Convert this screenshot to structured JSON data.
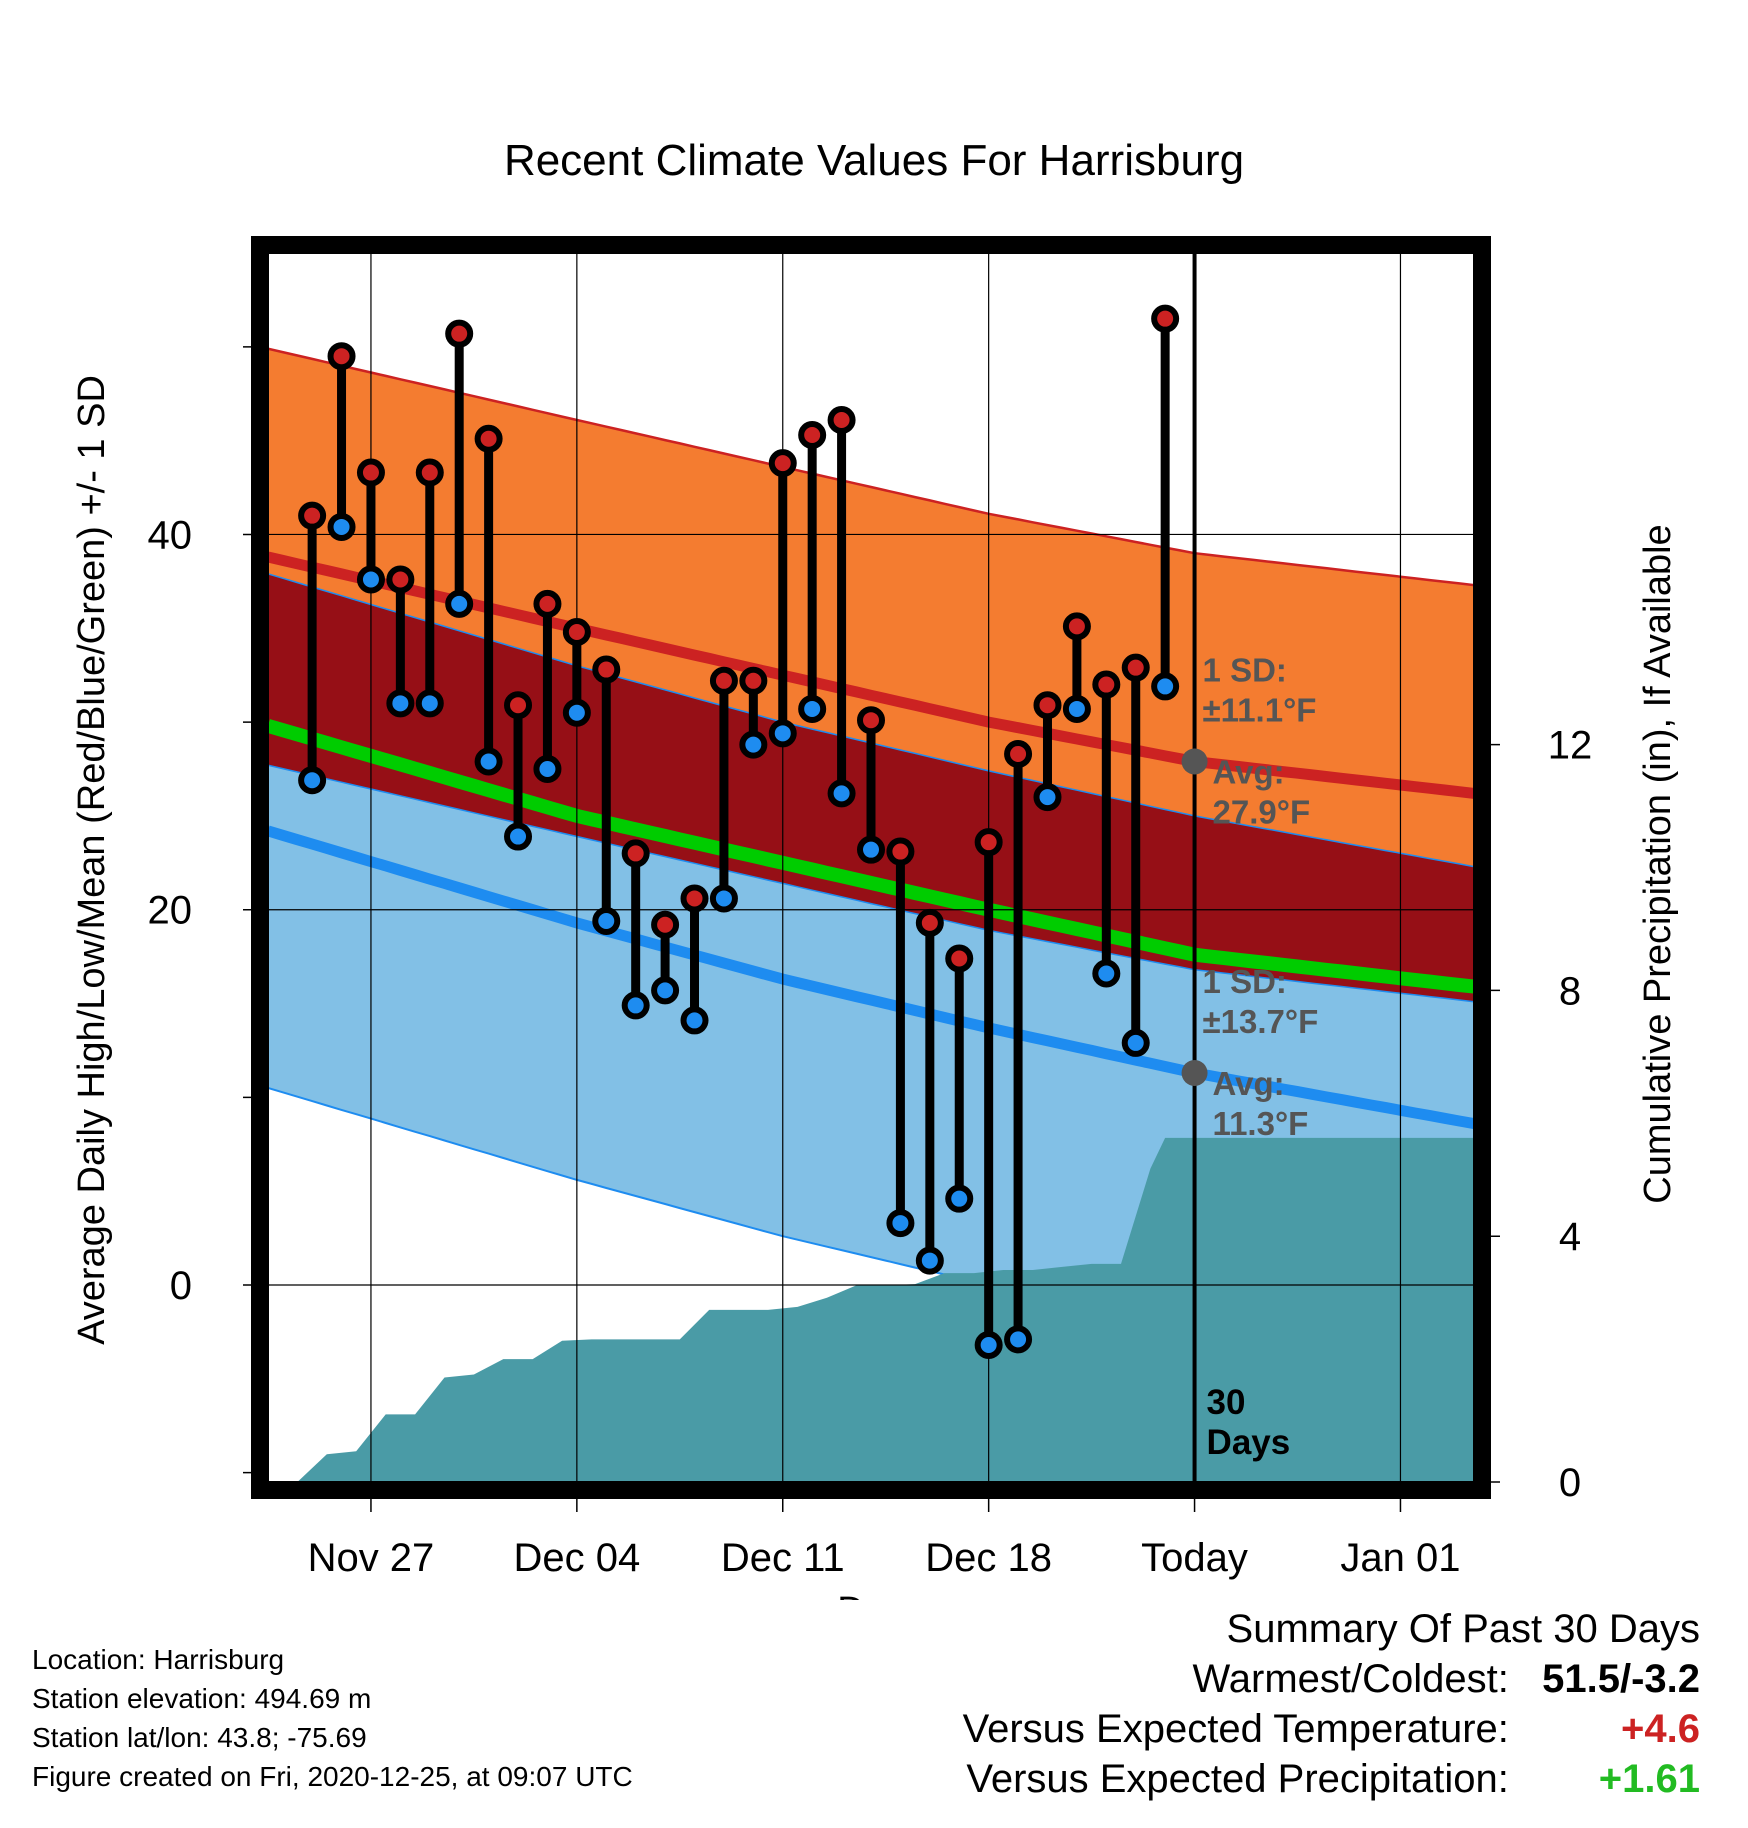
{
  "chart_data": {
    "type": "line",
    "title": "Recent Climate Values For Harrisburg",
    "xlabel": "Day",
    "ylabel": "Average Daily High/Low/Mean (Red/Blue/Green) +/- 1 SD",
    "y2label": "Cumulative Precipitation (in), If Available",
    "x_tick_labels": [
      "Nov 27",
      "Dec 04",
      "Dec 11",
      "Dec 18",
      "Today",
      "Jan 01"
    ],
    "y_ticks": [
      0,
      20,
      40
    ],
    "y2_ticks": [
      0,
      4,
      8,
      12
    ],
    "ylim": [
      -10.5,
      55
    ],
    "y2lim": [
      0,
      20
    ],
    "xlim_days": [
      -31.5,
      9.5
    ],
    "today_day": 0,
    "grid": true,
    "colors": {
      "high_band": "#f47c30",
      "high_mean": "#cc2222",
      "overlap_band": "#960f16",
      "low_band": "#82c0e6",
      "low_mean": "#1e8cf0",
      "mean": "#00cc00",
      "precip": "#4a9ba6",
      "high_marker": "#cc2222",
      "low_marker": "#1e8cf0",
      "annotation": "#555555",
      "pos_temp": "#cc2222",
      "pos_precip": "#22bb22"
    },
    "normals": {
      "days": [
        -31.5,
        -21,
        -14,
        -7,
        0,
        9.5
      ],
      "high_avg": [
        38.8,
        35.0,
        32.5,
        30.0,
        27.9,
        26.2
      ],
      "high_sd": 11.1,
      "low_avg": [
        24.2,
        19.3,
        16.3,
        13.7,
        11.3,
        8.6
      ],
      "low_sd": 13.7,
      "mean_avg": [
        29.8,
        25.0,
        22.5,
        20.0,
        17.6,
        15.9
      ]
    },
    "annotations": {
      "high_sd": [
        "1 SD:",
        "±11.1°F"
      ],
      "high_avg": [
        "Avg:",
        "27.9°F"
      ],
      "low_sd": [
        "1 SD:",
        "±13.7°F"
      ],
      "low_avg": [
        "Avg:",
        "11.3°F"
      ],
      "period": [
        "30",
        "Days"
      ]
    },
    "series": [
      {
        "name": "High",
        "days": [
          -30,
          -29,
          -28,
          -27,
          -26,
          -25,
          -24,
          -23,
          -22,
          -21,
          -20,
          -19,
          -18,
          -17,
          -16,
          -15,
          -14,
          -13,
          -12,
          -11,
          -10,
          -9,
          -8,
          -7,
          -6,
          -5,
          -4,
          -3,
          -2,
          -1
        ],
        "values": [
          41.0,
          49.5,
          43.3,
          37.6,
          43.3,
          50.7,
          45.1,
          30.9,
          36.3,
          34.8,
          32.8,
          23.0,
          19.2,
          20.6,
          32.2,
          32.2,
          43.8,
          45.3,
          46.1,
          30.1,
          23.1,
          19.3,
          17.4,
          23.6,
          28.3,
          30.9,
          35.1,
          32.0,
          32.9,
          51.5
        ]
      },
      {
        "name": "Low",
        "days": [
          -30,
          -29,
          -28,
          -27,
          -26,
          -25,
          -24,
          -23,
          -22,
          -21,
          -20,
          -19,
          -18,
          -17,
          -16,
          -15,
          -14,
          -13,
          -12,
          -11,
          -10,
          -9,
          -8,
          -7,
          -6,
          -5,
          -4,
          -3,
          -2,
          -1
        ],
        "values": [
          26.9,
          40.4,
          37.6,
          31.0,
          31.0,
          36.3,
          27.9,
          23.9,
          27.5,
          30.5,
          19.4,
          14.9,
          15.7,
          14.1,
          20.6,
          28.8,
          29.4,
          30.7,
          26.2,
          23.2,
          3.3,
          1.3,
          4.6,
          -3.2,
          -2.9,
          26.0,
          30.7,
          16.6,
          12.9,
          31.9
        ]
      },
      {
        "name": "Cumulative Precipitation",
        "days": [
          -30.5,
          -29.5,
          -28.5,
          -27.5,
          -26.5,
          -25.5,
          -24.5,
          -23.5,
          -22.5,
          -21.5,
          -20.5,
          -19.5,
          -18.5,
          -17.5,
          -16.5,
          -15.5,
          -14.5,
          -13.5,
          -12.5,
          -11.5,
          -10.5,
          -9.5,
          -8.5,
          -7.5,
          -6.5,
          -5.5,
          -4.5,
          -3.5,
          -2.5,
          -1.5,
          -1,
          9.5
        ],
        "values": [
          0.0,
          0.45,
          0.5,
          1.1,
          1.1,
          1.7,
          1.75,
          2.0,
          2.0,
          2.3,
          2.32,
          2.32,
          2.32,
          2.32,
          2.8,
          2.8,
          2.8,
          2.85,
          3.0,
          3.2,
          3.2,
          3.22,
          3.4,
          3.4,
          3.45,
          3.45,
          3.5,
          3.55,
          3.55,
          5.1,
          5.6,
          5.6
        ]
      }
    ]
  },
  "footer": {
    "location": "Location: Harrisburg",
    "elevation": "Station elevation: 494.69 m",
    "latlon": "Station lat/lon: 43.8; -75.69",
    "created": "Figure created on Fri, 2020-12-25, at 09:07 UTC"
  },
  "summary": {
    "title": "Summary Of Past 30 Days",
    "warmest_label": "Warmest/Coldest:",
    "warmest_value": "51.5/-3.2",
    "temp_label": "Versus Expected Temperature:",
    "temp_value": "+4.6",
    "precip_label": "Versus Expected Precipitation:",
    "precip_value": "+1.61"
  }
}
